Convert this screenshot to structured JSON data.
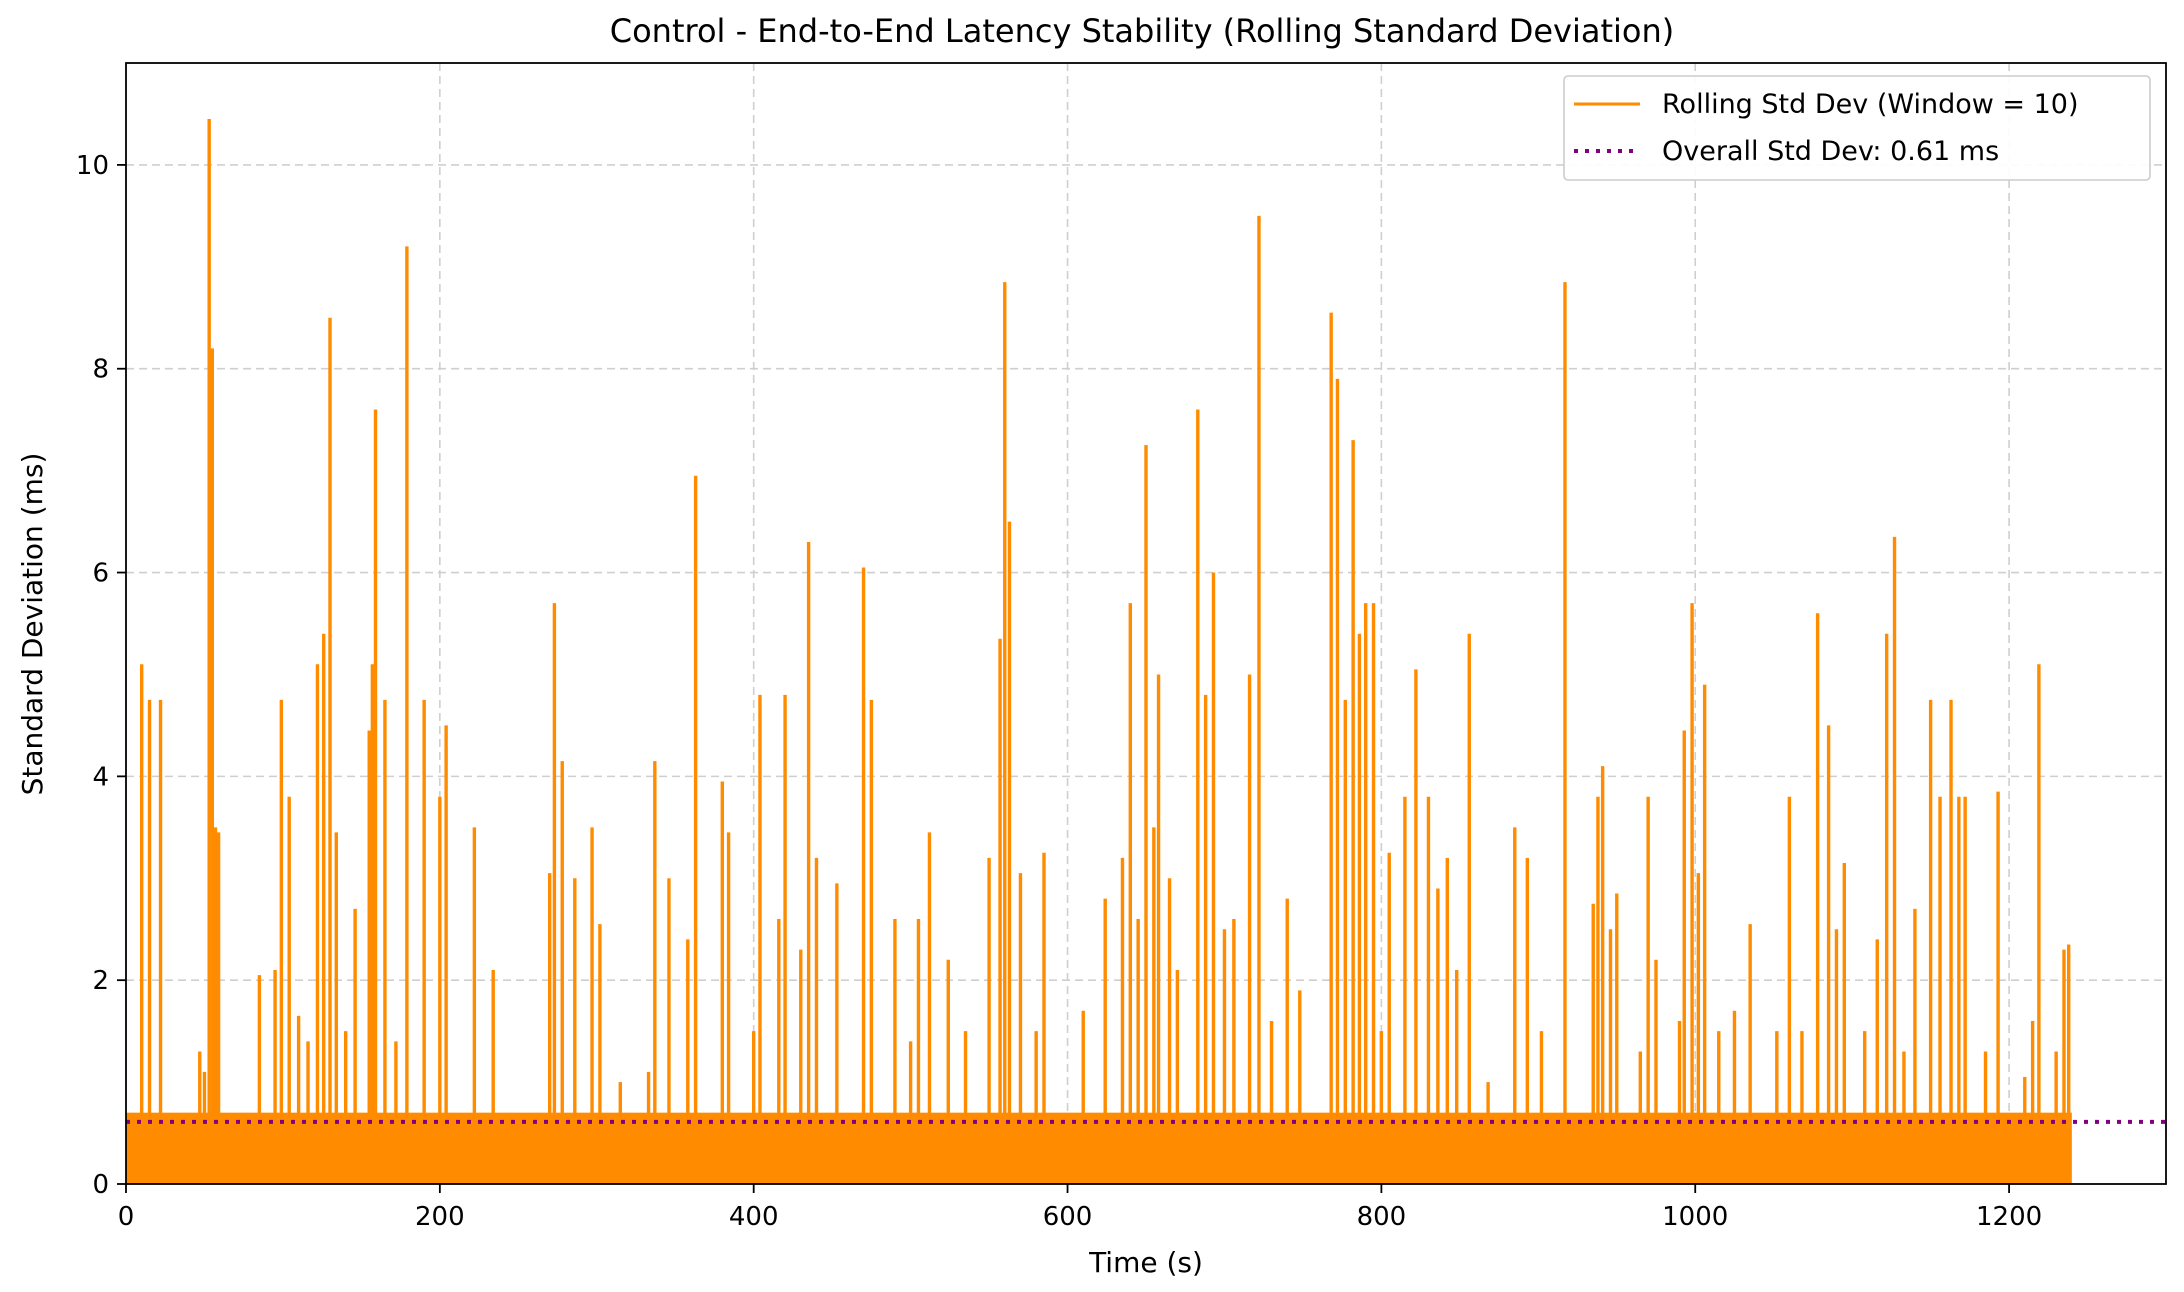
{
  "chart_data": {
    "type": "line",
    "title": "Control - End-to-End Latency Stability (Rolling Standard Deviation)",
    "xlabel": "Time (s)",
    "ylabel": "Standard Deviation (ms)",
    "xlim": [
      0,
      1300
    ],
    "ylim": [
      0,
      11
    ],
    "xticks": [
      0,
      200,
      400,
      600,
      800,
      1000,
      1200
    ],
    "xtick_labels": [
      "0",
      "200",
      "400",
      "600",
      "800",
      "1000",
      "1200"
    ],
    "yticks": [
      0,
      2,
      4,
      6,
      8,
      10
    ],
    "ytick_labels": [
      "0",
      "2",
      "4",
      "6",
      "8",
      "10"
    ],
    "grid": true,
    "legend_position": "top-right",
    "series": [
      {
        "name": "Rolling Std Dev (Window = 10)",
        "color": "#ff8c00",
        "style": "solid",
        "x_range": [
          0,
          1240
        ],
        "baseline_band": [
          0,
          0.7
        ],
        "peaks": [
          [
            10,
            5.1
          ],
          [
            15,
            4.75
          ],
          [
            22,
            4.75
          ],
          [
            47,
            1.3
          ],
          [
            50,
            1.1
          ],
          [
            53,
            10.45
          ],
          [
            55,
            8.2
          ],
          [
            57,
            3.5
          ],
          [
            59,
            3.45
          ],
          [
            85,
            2.05
          ],
          [
            95,
            2.1
          ],
          [
            99,
            4.75
          ],
          [
            104,
            3.8
          ],
          [
            110,
            1.65
          ],
          [
            116,
            1.4
          ],
          [
            122,
            5.1
          ],
          [
            126,
            5.4
          ],
          [
            130,
            8.5
          ],
          [
            134,
            3.45
          ],
          [
            140,
            1.5
          ],
          [
            146,
            2.7
          ],
          [
            155,
            4.45
          ],
          [
            157,
            5.1
          ],
          [
            159,
            7.6
          ],
          [
            165,
            4.75
          ],
          [
            172,
            1.4
          ],
          [
            179,
            9.2
          ],
          [
            190,
            4.75
          ],
          [
            200,
            3.8
          ],
          [
            204,
            4.5
          ],
          [
            222,
            3.5
          ],
          [
            234,
            2.1
          ],
          [
            270,
            3.05
          ],
          [
            273,
            5.7
          ],
          [
            278,
            4.15
          ],
          [
            286,
            3.0
          ],
          [
            297,
            3.5
          ],
          [
            302,
            2.55
          ],
          [
            315,
            1.0
          ],
          [
            333,
            1.1
          ],
          [
            337,
            4.15
          ],
          [
            346,
            3.0
          ],
          [
            358,
            2.4
          ],
          [
            363,
            6.95
          ],
          [
            380,
            3.95
          ],
          [
            384,
            3.45
          ],
          [
            400,
            1.5
          ],
          [
            404,
            4.8
          ],
          [
            416,
            2.6
          ],
          [
            420,
            4.8
          ],
          [
            430,
            2.3
          ],
          [
            435,
            6.3
          ],
          [
            440,
            3.2
          ],
          [
            453,
            2.95
          ],
          [
            470,
            6.05
          ],
          [
            475,
            4.75
          ],
          [
            490,
            2.6
          ],
          [
            500,
            1.4
          ],
          [
            505,
            2.6
          ],
          [
            512,
            3.45
          ],
          [
            524,
            2.2
          ],
          [
            535,
            1.5
          ],
          [
            550,
            3.2
          ],
          [
            557,
            5.35
          ],
          [
            560,
            8.85
          ],
          [
            563,
            6.5
          ],
          [
            570,
            3.05
          ],
          [
            580,
            1.5
          ],
          [
            585,
            3.25
          ],
          [
            610,
            1.7
          ],
          [
            624,
            2.8
          ],
          [
            635,
            3.2
          ],
          [
            640,
            5.7
          ],
          [
            645,
            2.6
          ],
          [
            650,
            7.25
          ],
          [
            655,
            3.5
          ],
          [
            658,
            5.0
          ],
          [
            665,
            3.0
          ],
          [
            670,
            2.1
          ],
          [
            683,
            7.6
          ],
          [
            688,
            4.8
          ],
          [
            693,
            6.0
          ],
          [
            700,
            2.5
          ],
          [
            706,
            2.6
          ],
          [
            716,
            5.0
          ],
          [
            722,
            9.5
          ],
          [
            730,
            1.6
          ],
          [
            740,
            2.8
          ],
          [
            748,
            1.9
          ],
          [
            768,
            8.55
          ],
          [
            772,
            7.9
          ],
          [
            777,
            4.75
          ],
          [
            782,
            7.3
          ],
          [
            786,
            5.4
          ],
          [
            790,
            5.7
          ],
          [
            795,
            5.7
          ],
          [
            800,
            1.5
          ],
          [
            805,
            3.25
          ],
          [
            815,
            3.8
          ],
          [
            822,
            5.05
          ],
          [
            830,
            3.8
          ],
          [
            836,
            2.9
          ],
          [
            842,
            3.2
          ],
          [
            848,
            2.1
          ],
          [
            856,
            5.4
          ],
          [
            868,
            1.0
          ],
          [
            885,
            3.5
          ],
          [
            893,
            3.2
          ],
          [
            902,
            1.5
          ],
          [
            917,
            8.85
          ],
          [
            935,
            2.75
          ],
          [
            938,
            3.8
          ],
          [
            941,
            4.1
          ],
          [
            946,
            2.5
          ],
          [
            950,
            2.85
          ],
          [
            965,
            1.3
          ],
          [
            970,
            3.8
          ],
          [
            975,
            2.2
          ],
          [
            990,
            1.6
          ],
          [
            993,
            4.45
          ],
          [
            998,
            5.7
          ],
          [
            1002,
            3.05
          ],
          [
            1006,
            4.9
          ],
          [
            1015,
            1.5
          ],
          [
            1025,
            1.7
          ],
          [
            1035,
            2.55
          ],
          [
            1052,
            1.5
          ],
          [
            1060,
            3.8
          ],
          [
            1068,
            1.5
          ],
          [
            1078,
            5.6
          ],
          [
            1085,
            4.5
          ],
          [
            1090,
            2.5
          ],
          [
            1095,
            3.15
          ],
          [
            1108,
            1.5
          ],
          [
            1116,
            2.4
          ],
          [
            1122,
            5.4
          ],
          [
            1127,
            6.35
          ],
          [
            1133,
            1.3
          ],
          [
            1140,
            2.7
          ],
          [
            1150,
            4.75
          ],
          [
            1156,
            3.8
          ],
          [
            1163,
            4.75
          ],
          [
            1168,
            3.8
          ],
          [
            1172,
            3.8
          ],
          [
            1185,
            1.3
          ],
          [
            1193,
            3.85
          ],
          [
            1210,
            1.05
          ],
          [
            1215,
            1.6
          ],
          [
            1219,
            5.1
          ],
          [
            1230,
            1.3
          ],
          [
            1235,
            2.3
          ],
          [
            1238,
            2.35
          ]
        ]
      },
      {
        "name": "Overall Std Dev: 0.61 ms",
        "color": "#800080",
        "style": "dotted",
        "y": 0.61
      }
    ]
  }
}
